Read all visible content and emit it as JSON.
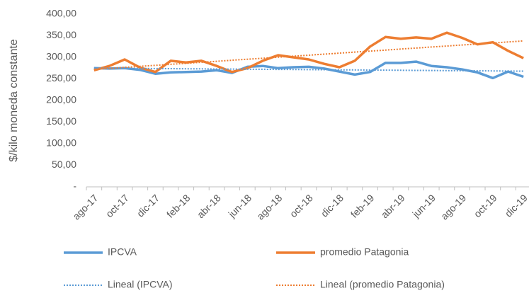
{
  "chart_data": {
    "type": "line",
    "y_label": "$/kilo moneda constante",
    "categories": [
      "ago-17",
      null,
      "oct-17",
      null,
      "dic-17",
      null,
      "feb-18",
      null,
      "abr-18",
      null,
      "jun-18",
      null,
      "ago-18",
      null,
      "oct-18",
      null,
      "dic-18",
      null,
      "feb-19",
      null,
      "abr-19",
      null,
      "jun-19",
      null,
      "ago-19",
      null,
      "oct-19",
      null,
      "dic-19"
    ],
    "series": [
      {
        "name": "IPCVA",
        "color": "#5b9bd5",
        "style": "solid",
        "values": [
          275,
          274,
          275,
          271,
          262,
          265,
          266,
          267,
          270,
          264,
          278,
          280,
          275,
          277,
          278,
          274,
          267,
          260,
          266,
          287,
          287,
          290,
          280,
          277,
          272,
          265,
          252,
          267,
          255
        ]
      },
      {
        "name": "promedio Patagonia",
        "color": "#ed7d31",
        "style": "solid",
        "values": [
          270,
          280,
          295,
          276,
          266,
          292,
          288,
          292,
          280,
          266,
          275,
          292,
          305,
          300,
          295,
          285,
          277,
          292,
          325,
          347,
          343,
          346,
          343,
          357,
          345,
          330,
          335,
          315,
          298
        ]
      },
      {
        "name": "Lineal (IPCVA)",
        "color": "#5b9bd5",
        "style": "dotted",
        "values": [
          275,
          274.75,
          274.5,
          274.25,
          274,
          273.75,
          273.5,
          273.25,
          273,
          272.75,
          272.5,
          272.25,
          272,
          271.75,
          271.5,
          271.25,
          271,
          270.75,
          270.5,
          270.25,
          270,
          269.75,
          269.5,
          269.25,
          269,
          268.75,
          268.5,
          268.25,
          268
        ]
      },
      {
        "name": "Lineal (promedio Patagonia)",
        "color": "#ed7d31",
        "style": "dotted",
        "values": [
          272,
          274.4,
          276.7,
          279.1,
          281.4,
          283.8,
          286.1,
          288.5,
          290.9,
          293.2,
          295.6,
          297.9,
          300.3,
          302.6,
          305,
          307.4,
          309.7,
          312.1,
          314.4,
          316.8,
          319.1,
          321.5,
          323.9,
          326.2,
          328.6,
          330.9,
          333.3,
          335.6,
          338
        ]
      }
    ],
    "ylim": [
      0,
      400
    ],
    "yticks": [
      {
        "value": 0,
        "label": "-"
      },
      {
        "value": 50,
        "label": "50,00"
      },
      {
        "value": 100,
        "label": "100,00"
      },
      {
        "value": 150,
        "label": "150,00"
      },
      {
        "value": 200,
        "label": "200,00"
      },
      {
        "value": 250,
        "label": "250,00"
      },
      {
        "value": 300,
        "label": "300,00"
      },
      {
        "value": 350,
        "label": "350,00"
      },
      {
        "value": 400,
        "label": "400,00"
      }
    ],
    "grid": false
  }
}
